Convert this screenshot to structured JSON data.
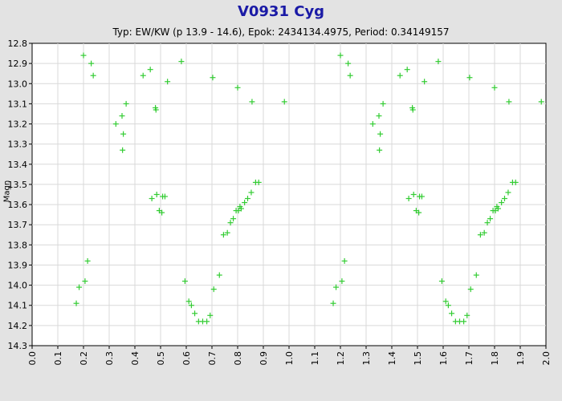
{
  "chart_data": {
    "type": "scatter",
    "title": "V0931 Cyg",
    "subtitle": "Typ: EW/KW (p 13.9 - 14.6), Epok: 2434134.4975, Period: 0.34149157",
    "xlabel": "",
    "ylabel": "Magn",
    "xlim": [
      0.0,
      2.0
    ],
    "ylim": [
      12.8,
      14.3
    ],
    "y_inverted": true,
    "grid": true,
    "marker": "+",
    "marker_color": "#33cc33",
    "x_ticks": [
      "0.0",
      "0.1",
      "0.2",
      "0.3",
      "0.4",
      "0.5",
      "0.6",
      "0.7",
      "0.8",
      "0.9",
      "1.0",
      "1.1",
      "1.2",
      "1.3",
      "1.4",
      "1.5",
      "1.6",
      "1.7",
      "1.8",
      "1.9",
      "2.0"
    ],
    "y_ticks": [
      "12.8",
      "12.9",
      "13.0",
      "13.1",
      "13.2",
      "13.3",
      "13.4",
      "13.5",
      "13.6",
      "13.7",
      "13.8",
      "13.9",
      "14.0",
      "14.1",
      "14.2",
      "14.3"
    ],
    "points": [
      {
        "x": 0.172,
        "y": 14.09
      },
      {
        "x": 0.183,
        "y": 14.01
      },
      {
        "x": 0.2,
        "y": 12.86
      },
      {
        "x": 0.206,
        "y": 13.98
      },
      {
        "x": 0.216,
        "y": 13.88
      },
      {
        "x": 0.23,
        "y": 12.9
      },
      {
        "x": 0.238,
        "y": 12.96
      },
      {
        "x": 0.326,
        "y": 13.2
      },
      {
        "x": 0.35,
        "y": 13.16
      },
      {
        "x": 0.352,
        "y": 13.33
      },
      {
        "x": 0.355,
        "y": 13.25
      },
      {
        "x": 0.366,
        "y": 13.1
      },
      {
        "x": 0.432,
        "y": 12.96
      },
      {
        "x": 0.46,
        "y": 12.93
      },
      {
        "x": 0.466,
        "y": 13.57
      },
      {
        "x": 0.48,
        "y": 13.12
      },
      {
        "x": 0.482,
        "y": 13.13
      },
      {
        "x": 0.485,
        "y": 13.55
      },
      {
        "x": 0.495,
        "y": 13.63
      },
      {
        "x": 0.505,
        "y": 13.64
      },
      {
        "x": 0.508,
        "y": 13.56
      },
      {
        "x": 0.517,
        "y": 13.56
      },
      {
        "x": 0.527,
        "y": 12.99
      },
      {
        "x": 0.581,
        "y": 12.89
      },
      {
        "x": 0.595,
        "y": 13.98
      },
      {
        "x": 0.61,
        "y": 14.08
      },
      {
        "x": 0.62,
        "y": 14.1
      },
      {
        "x": 0.633,
        "y": 14.14
      },
      {
        "x": 0.648,
        "y": 14.18
      },
      {
        "x": 0.664,
        "y": 14.18
      },
      {
        "x": 0.68,
        "y": 14.18
      },
      {
        "x": 0.693,
        "y": 14.15
      },
      {
        "x": 0.703,
        "y": 12.97
      },
      {
        "x": 0.707,
        "y": 14.02
      },
      {
        "x": 0.729,
        "y": 13.95
      },
      {
        "x": 0.745,
        "y": 13.75
      },
      {
        "x": 0.76,
        "y": 13.74
      },
      {
        "x": 0.772,
        "y": 13.69
      },
      {
        "x": 0.783,
        "y": 13.67
      },
      {
        "x": 0.794,
        "y": 13.63
      },
      {
        "x": 0.8,
        "y": 13.02
      },
      {
        "x": 0.803,
        "y": 13.63
      },
      {
        "x": 0.809,
        "y": 13.61
      },
      {
        "x": 0.814,
        "y": 13.62
      },
      {
        "x": 0.827,
        "y": 13.59
      },
      {
        "x": 0.839,
        "y": 13.57
      },
      {
        "x": 0.853,
        "y": 13.54
      },
      {
        "x": 0.856,
        "y": 13.09
      },
      {
        "x": 0.87,
        "y": 13.49
      },
      {
        "x": 0.882,
        "y": 13.49
      },
      {
        "x": 0.982,
        "y": 13.09
      }
    ],
    "repeat_offset": 1.0
  }
}
